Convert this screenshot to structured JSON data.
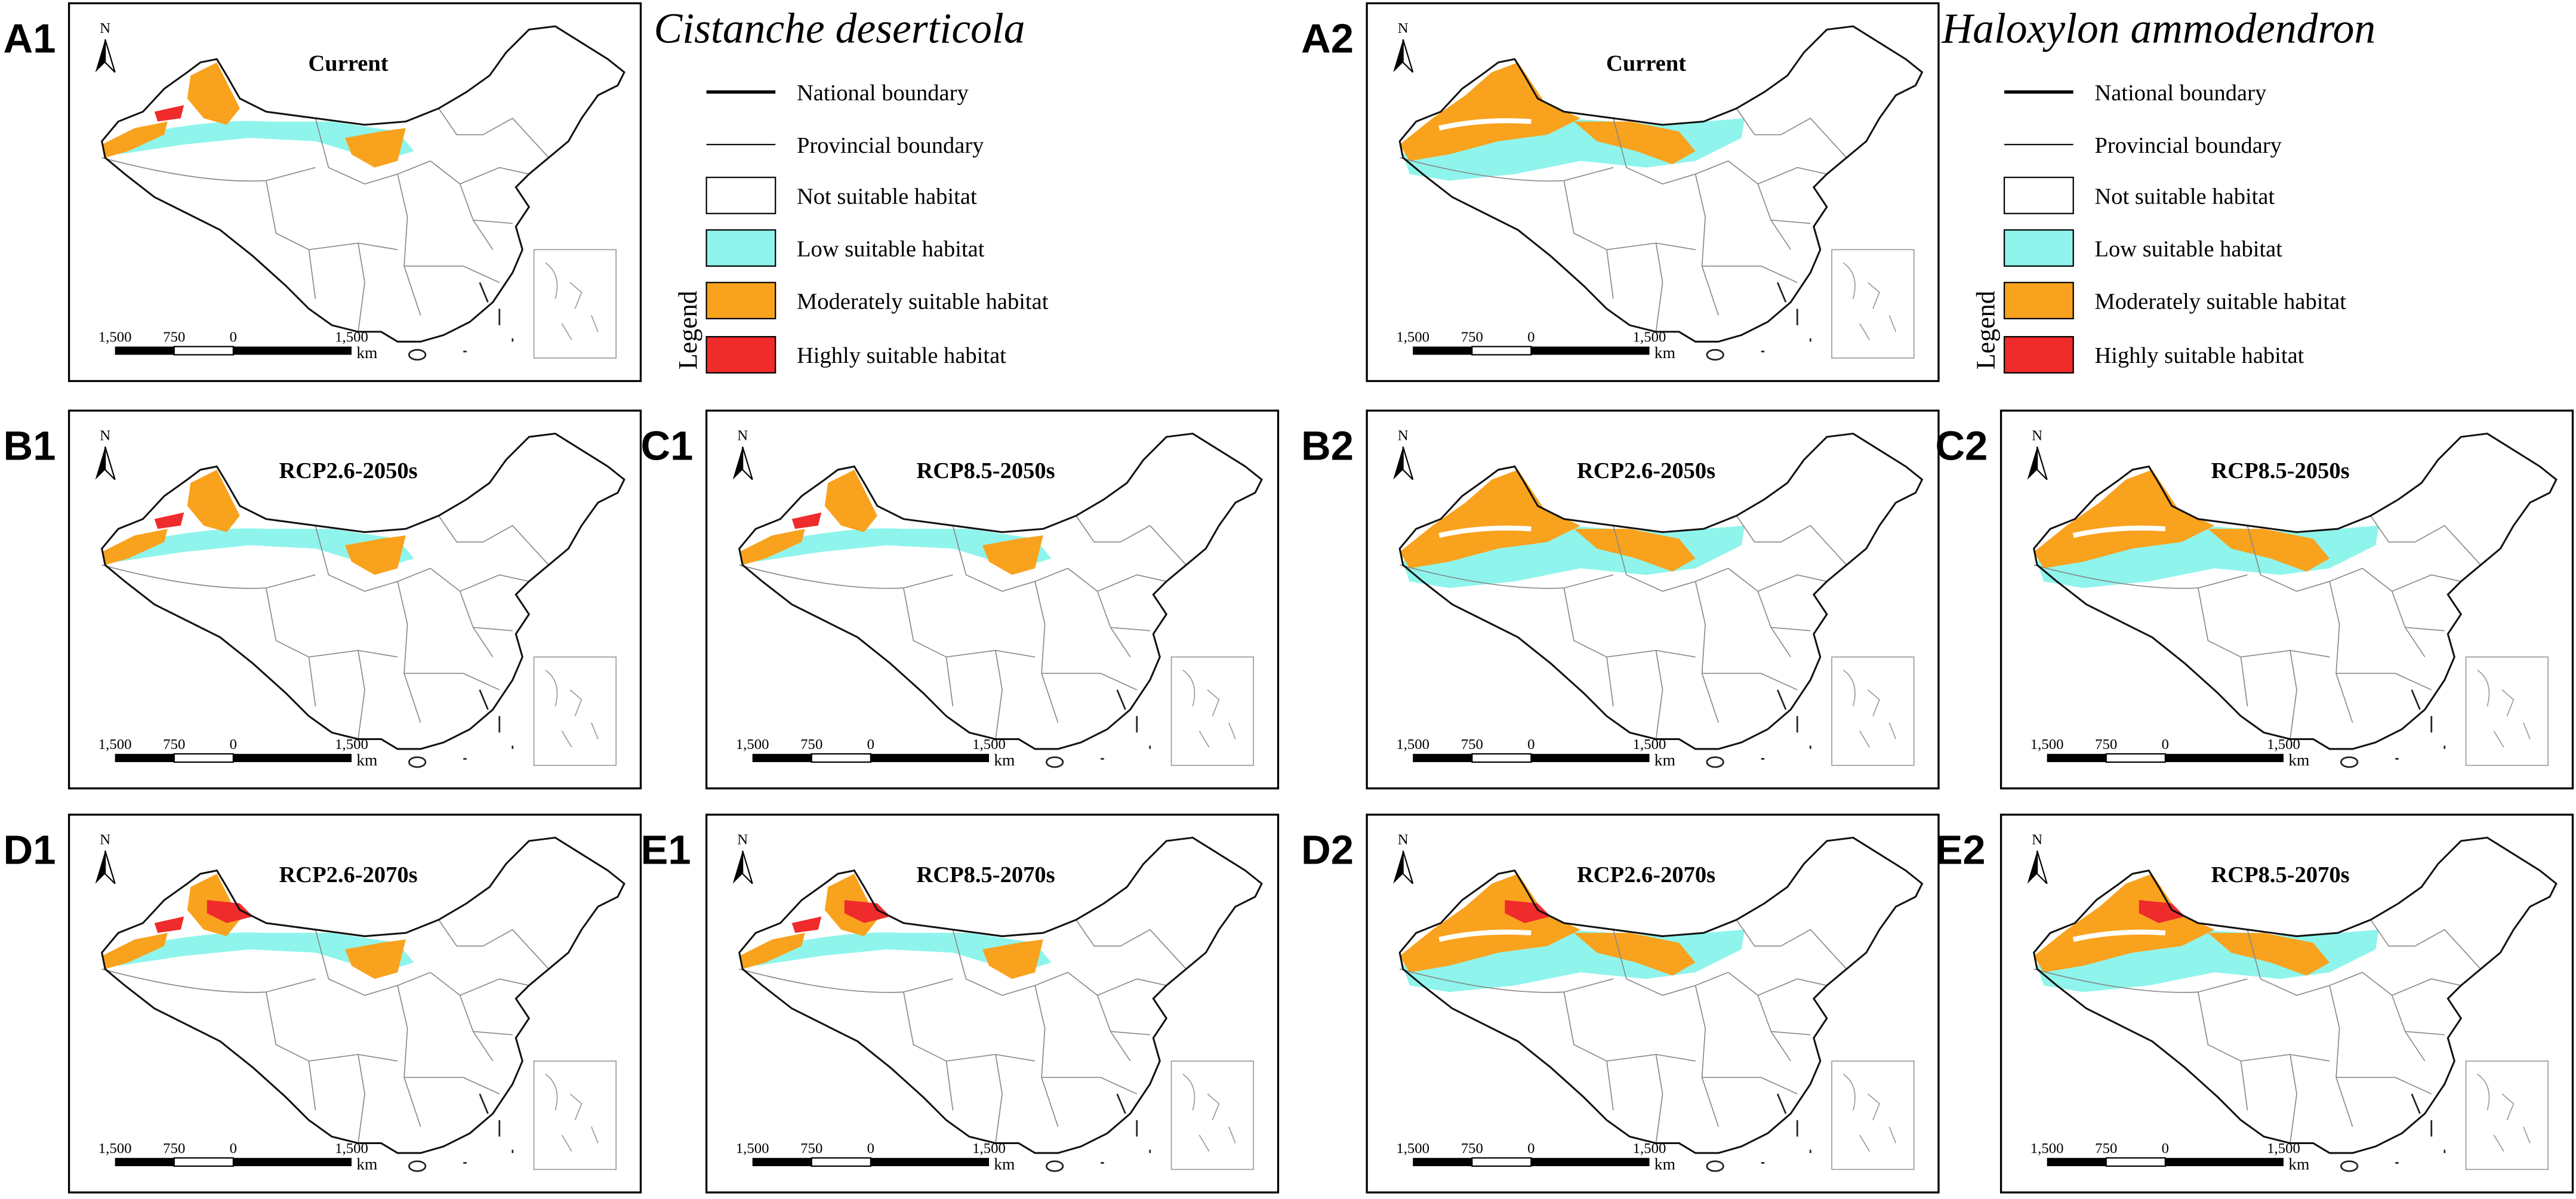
{
  "species_titles": [
    "Cistanche deserticola",
    "Haloxylon ammodendron"
  ],
  "legends": [
    {
      "title": "Legend",
      "items": [
        "National boundary",
        "Provincial boundary",
        "Not suitable habitat",
        "Low suitable habitat",
        "Moderately suitable habitat",
        "Highly suitable habitat"
      ]
    },
    {
      "title": "Legend",
      "items": [
        "National boundary",
        "Provincial boundary",
        "Not suitable habitat",
        "Low suitable habitat",
        "Moderately suitable habitat",
        "Highly suitable habitat"
      ]
    }
  ],
  "panels": [
    {
      "label": "A1",
      "title": "Current"
    },
    {
      "label": "B1",
      "title": "RCP2.6-2050s"
    },
    {
      "label": "C1",
      "title": "RCP8.5-2050s"
    },
    {
      "label": "D1",
      "title": "RCP2.6-2070s"
    },
    {
      "label": "E1",
      "title": "RCP8.5-2070s"
    },
    {
      "label": "A2",
      "title": "Current"
    },
    {
      "label": "B2",
      "title": "RCP2.6-2050s"
    },
    {
      "label": "C2",
      "title": "RCP8.5-2050s"
    },
    {
      "label": "D2",
      "title": "RCP2.6-2070s"
    },
    {
      "label": "E2",
      "title": "RCP8.5-2070s"
    }
  ],
  "north": "N",
  "scale_bar": {
    "labels": [
      "1,500",
      "750",
      "0",
      "1,500"
    ],
    "unit": "km"
  }
}
